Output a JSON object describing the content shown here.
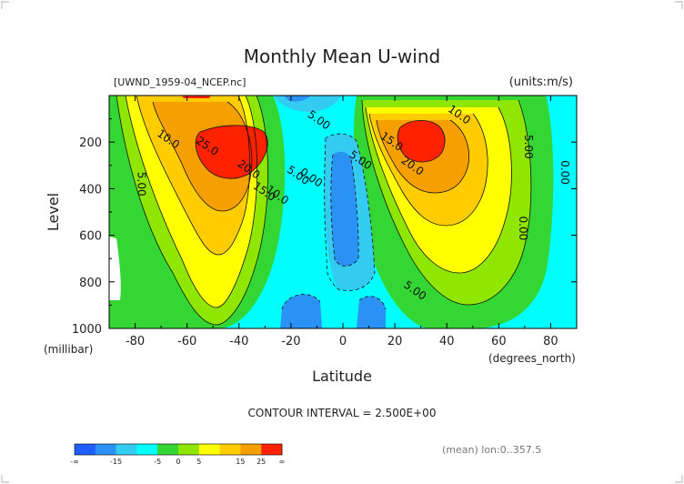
{
  "chart_data": {
    "type": "contour",
    "title": "Monthly Mean U-wind",
    "dataset_label": "[UWND_1959-04_NCEP.nc]",
    "units_label": "(units:m/s)",
    "xlabel": "Latitude",
    "xunits": "(degrees_north)",
    "ylabel": "Level",
    "yunits": "(millibar)",
    "xlim": [
      -90,
      90
    ],
    "ylim": [
      1000,
      0
    ],
    "x_ticks": [
      -80,
      -60,
      -40,
      -20,
      0,
      20,
      40,
      60,
      80
    ],
    "y_ticks": [
      200,
      400,
      600,
      800,
      1000
    ],
    "y_scale": "linear, inverted",
    "contour_interval_text": "CONTOUR INTERVAL = 2.500E+00",
    "footer_note": "(mean) lon:0..357.5",
    "contour_labels": [
      {
        "text": "10.0",
        "lat": -68,
        "p": 200
      },
      {
        "text": "5.00",
        "lat": -79,
        "p": 380
      },
      {
        "text": "25.0",
        "lat": -53,
        "p": 230
      },
      {
        "text": "20.0",
        "lat": -37,
        "p": 330
      },
      {
        "text": "15.0",
        "lat": -31,
        "p": 425
      },
      {
        "text": "10.0",
        "lat": -26,
        "p": 440
      },
      {
        "text": "5.00",
        "lat": -18,
        "p": 355
      },
      {
        "text": "0.00",
        "lat": -13,
        "p": 365
      },
      {
        "text": "5.00",
        "lat": -10,
        "p": 118
      },
      {
        "text": "5.00",
        "lat": 6,
        "p": 290
      },
      {
        "text": "15.0",
        "lat": 18,
        "p": 210
      },
      {
        "text": "10.0",
        "lat": 44,
        "p": 95
      },
      {
        "text": "20.0",
        "lat": 26,
        "p": 315
      },
      {
        "text": "5.00",
        "lat": 70,
        "p": 220
      },
      {
        "text": "0.00",
        "lat": 84,
        "p": 330
      },
      {
        "text": "0.00",
        "lat": 68,
        "p": 570
      },
      {
        "text": "5.00",
        "lat": 27,
        "p": 850
      }
    ],
    "jets": [
      {
        "lat": -43,
        "p": 230,
        "max": 27.5
      },
      {
        "lat": 28,
        "p": 170,
        "max": 27.5
      }
    ],
    "easterly_regions": [
      {
        "lat": 0,
        "p": 420
      },
      {
        "lat": -12,
        "p": 870
      },
      {
        "lat": 13,
        "p": 920
      }
    ],
    "colorbar": {
      "levels": [
        "-∞",
        "-15",
        "-5",
        "0",
        "5",
        "15",
        "25",
        "∞"
      ],
      "colors": [
        "#1f5fff",
        "#2a92f5",
        "#33ccf0",
        "#00ffff",
        "#33d633",
        "#8fe600",
        "#ffff00",
        "#ffcc00",
        "#f5a000",
        "#ff2200"
      ]
    }
  }
}
